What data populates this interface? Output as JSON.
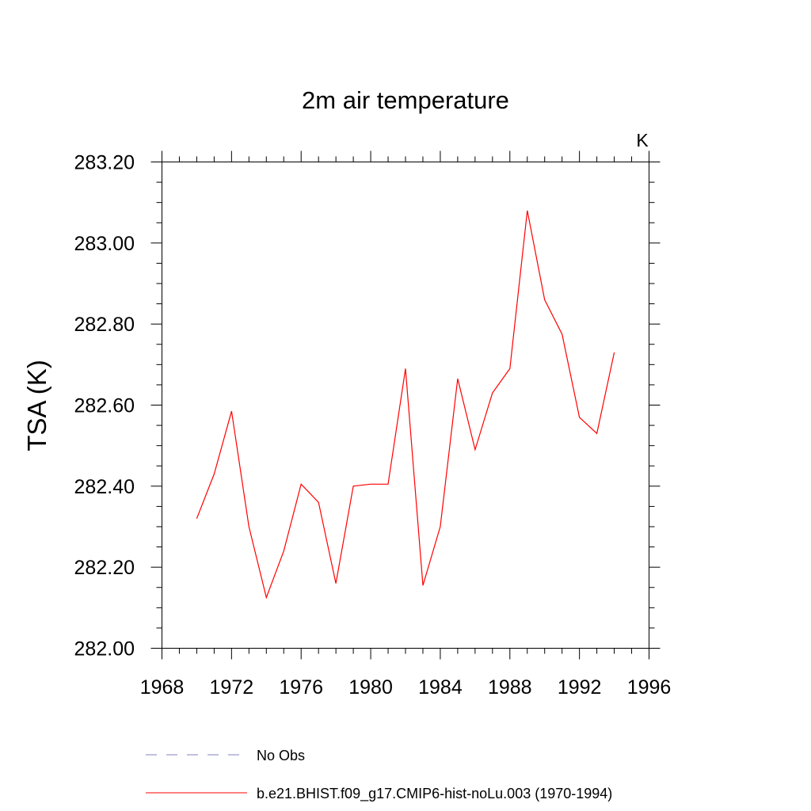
{
  "chart_data": {
    "type": "line",
    "title": "2m air temperature",
    "units_label": "K",
    "xlabel": "",
    "ylabel": "TSA  (K)",
    "xlim": [
      1968,
      1996
    ],
    "ylim": [
      282.0,
      283.2
    ],
    "x_ticks": [
      1968,
      1972,
      1976,
      1980,
      1984,
      1988,
      1992,
      1996
    ],
    "x_tick_labels": [
      "1968",
      "1972",
      "1976",
      "1980",
      "1984",
      "1988",
      "1992",
      "1996"
    ],
    "y_ticks": [
      282.0,
      282.2,
      282.4,
      282.6,
      282.8,
      283.0,
      283.2
    ],
    "y_tick_labels": [
      "282.00",
      "282.20",
      "282.40",
      "282.60",
      "282.80",
      "283.00",
      "283.20"
    ],
    "grid": false,
    "legend_position": "bottom",
    "legend": [
      {
        "label": "No Obs",
        "style": "dashed",
        "color": "#8080c0"
      },
      {
        "label": "b.e21.BHIST.f09_g17.CMIP6-hist-noLu.003 (1970-1994)",
        "style": "solid",
        "color": "#ff0000"
      }
    ],
    "series": [
      {
        "name": "b.e21.BHIST.f09_g17.CMIP6-hist-noLu.003 (1970-1994)",
        "color": "#ff0000",
        "x": [
          1970,
          1971,
          1972,
          1973,
          1974,
          1975,
          1976,
          1977,
          1978,
          1979,
          1980,
          1981,
          1982,
          1983,
          1984,
          1985,
          1986,
          1987,
          1988,
          1989,
          1990,
          1991,
          1992,
          1993,
          1994
        ],
        "values": [
          282.32,
          282.43,
          282.585,
          282.3,
          282.125,
          282.24,
          282.405,
          282.36,
          282.16,
          282.4,
          282.405,
          282.405,
          282.69,
          282.155,
          282.3,
          282.665,
          282.49,
          282.63,
          282.69,
          283.08,
          282.86,
          282.775,
          282.57,
          282.53,
          282.73
        ]
      }
    ]
  }
}
